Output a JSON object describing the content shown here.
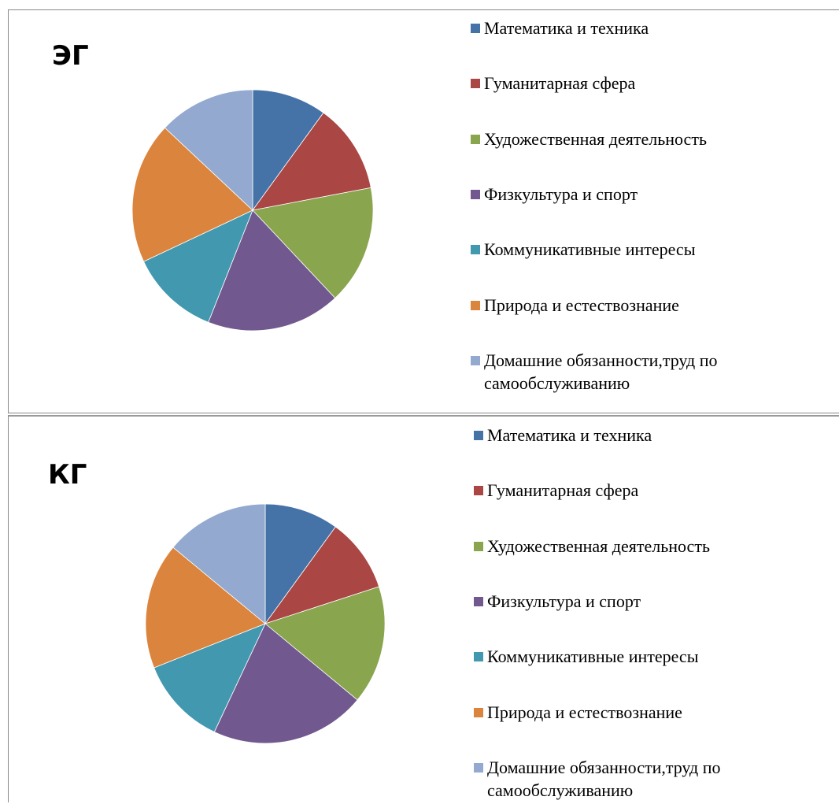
{
  "chart_data": [
    {
      "type": "pie",
      "title": "ЭГ",
      "categories": [
        "Математика и техника",
        "Гуманитарная сфера",
        "Художественная деятельность",
        "Физкультура и спорт",
        "Коммуникативные интересы",
        "Природа и естествознание",
        "Домашние обязанности,труд по самообслуживанию"
      ],
      "values": [
        10,
        12,
        16,
        18,
        12,
        19,
        13
      ],
      "colors": [
        "#4572A7",
        "#AA4643",
        "#89A54E",
        "#71588F",
        "#4198AF",
        "#DB843D",
        "#93A9CF"
      ],
      "legend": "right"
    },
    {
      "type": "pie",
      "title": "КГ",
      "categories": [
        "Математика и техника",
        "Гуманитарная сфера",
        "Художественная деятельность",
        "Физкультура и спорт",
        "Коммуникативные интересы",
        "Природа и естествознание",
        "Домашние обязанности,труд по самообслуживанию"
      ],
      "values": [
        10,
        10,
        16,
        21,
        12,
        17,
        14
      ],
      "colors": [
        "#4572A7",
        "#AA4643",
        "#89A54E",
        "#71588F",
        "#4198AF",
        "#DB843D",
        "#93A9CF"
      ],
      "legend": "right"
    }
  ]
}
